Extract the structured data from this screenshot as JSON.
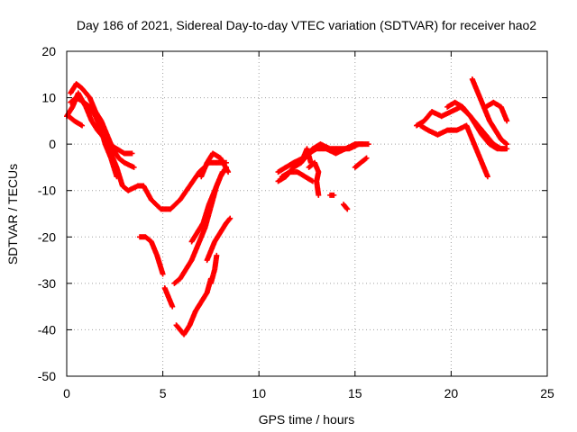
{
  "chart_data": {
    "type": "scatter",
    "title": "Day 186 of 2021, Sidereal Day-to-day VTEC variation (SDTVAR) for receiver hao2",
    "xlabel": "GPS time / hours",
    "ylabel": "SDTVAR / TECUs",
    "xlim": [
      0,
      25
    ],
    "ylim": [
      -50,
      20
    ],
    "xticks": [
      "0",
      "5",
      "10",
      "15",
      "20",
      "25"
    ],
    "yticks": [
      "20",
      "10",
      "0",
      "-10",
      "-20",
      "-30",
      "-40",
      "-50"
    ],
    "grid": true,
    "marker": "+",
    "marker_color": "#ff0000",
    "series": [
      {
        "values": [
          [
            0,
            6
          ],
          [
            0.3,
            8
          ],
          [
            0.6,
            11
          ],
          [
            1.0,
            8
          ],
          [
            1.3,
            5
          ],
          [
            1.6,
            3
          ],
          [
            2.0,
            1
          ],
          [
            2.3,
            -2
          ],
          [
            2.6,
            -5
          ],
          [
            2.9,
            -9
          ],
          [
            3.2,
            -10
          ],
          [
            3.7,
            -9
          ],
          [
            4.0,
            -9
          ],
          [
            4.4,
            -12
          ],
          [
            4.9,
            -14
          ],
          [
            5.4,
            -14
          ],
          [
            5.9,
            -12
          ],
          [
            6.4,
            -9
          ],
          [
            6.9,
            -6
          ],
          [
            7.4,
            -4
          ],
          [
            7.9,
            -4
          ],
          [
            8.3,
            -4
          ]
        ]
      },
      {
        "values": [
          [
            0.2,
            11
          ],
          [
            0.5,
            13
          ],
          [
            0.8,
            12
          ],
          [
            1.2,
            10
          ],
          [
            1.5,
            7
          ],
          [
            1.8,
            5
          ],
          [
            2.1,
            2
          ],
          [
            2.4,
            -1
          ],
          [
            2.7,
            -3
          ],
          [
            3.0,
            -4
          ],
          [
            3.5,
            -5
          ]
        ]
      },
      {
        "values": [
          [
            0.2,
            9
          ],
          [
            0.5,
            10
          ],
          [
            0.9,
            9
          ],
          [
            1.2,
            8
          ],
          [
            1.5,
            6
          ],
          [
            1.8,
            3
          ],
          [
            2.0,
            0
          ],
          [
            2.3,
            -3
          ],
          [
            2.6,
            -7
          ]
        ]
      },
      {
        "values": [
          [
            0.1,
            6
          ],
          [
            0.4,
            5
          ],
          [
            0.8,
            4
          ]
        ]
      },
      {
        "values": [
          [
            2.2,
            0
          ],
          [
            2.6,
            -1
          ],
          [
            3.0,
            -2
          ],
          [
            3.4,
            -2
          ]
        ]
      },
      {
        "values": [
          [
            3.8,
            -20
          ],
          [
            4.1,
            -20
          ],
          [
            4.4,
            -21
          ],
          [
            4.7,
            -24
          ],
          [
            5.0,
            -28
          ]
        ]
      },
      {
        "values": [
          [
            5.1,
            -31
          ],
          [
            5.3,
            -33
          ],
          [
            5.5,
            -35
          ]
        ]
      },
      {
        "values": [
          [
            5.7,
            -39
          ],
          [
            5.9,
            -40
          ],
          [
            6.1,
            -41
          ],
          [
            6.4,
            -39
          ],
          [
            6.7,
            -36
          ],
          [
            7.0,
            -34
          ],
          [
            7.3,
            -32
          ],
          [
            7.5,
            -29
          ]
        ]
      },
      {
        "values": [
          [
            5.6,
            -30
          ],
          [
            5.9,
            -29
          ],
          [
            6.2,
            -27
          ],
          [
            6.5,
            -25
          ],
          [
            6.8,
            -22
          ],
          [
            7.0,
            -20
          ],
          [
            7.2,
            -18
          ],
          [
            7.4,
            -15
          ],
          [
            7.6,
            -12
          ],
          [
            7.8,
            -9
          ],
          [
            8.1,
            -6
          ]
        ]
      },
      {
        "values": [
          [
            6.5,
            -21
          ],
          [
            6.8,
            -19
          ],
          [
            7.1,
            -17
          ],
          [
            7.4,
            -13
          ],
          [
            7.7,
            -10
          ],
          [
            8.0,
            -7
          ],
          [
            8.3,
            -5
          ]
        ]
      },
      {
        "values": [
          [
            7.0,
            -7
          ],
          [
            7.3,
            -4
          ],
          [
            7.6,
            -2
          ],
          [
            8.0,
            -3
          ],
          [
            8.4,
            -6
          ]
        ]
      },
      {
        "values": [
          [
            7.3,
            -25
          ],
          [
            7.5,
            -23
          ],
          [
            7.7,
            -21
          ],
          [
            8.0,
            -19
          ],
          [
            8.3,
            -17
          ],
          [
            8.5,
            -16
          ]
        ]
      },
      {
        "values": [
          [
            7.5,
            -30
          ],
          [
            7.7,
            -27
          ],
          [
            7.8,
            -24
          ]
        ]
      },
      {
        "values": [
          [
            11.0,
            -8
          ],
          [
            11.4,
            -7
          ],
          [
            11.8,
            -5
          ],
          [
            12.2,
            -4
          ],
          [
            12.6,
            -2
          ],
          [
            13.0,
            -1
          ],
          [
            13.5,
            -1
          ],
          [
            14.0,
            -2
          ],
          [
            14.5,
            -1
          ],
          [
            15.0,
            0
          ],
          [
            15.4,
            0
          ]
        ]
      },
      {
        "values": [
          [
            11.0,
            -6
          ],
          [
            11.4,
            -5
          ],
          [
            11.8,
            -4
          ],
          [
            12.3,
            -3
          ],
          [
            12.8,
            -1
          ],
          [
            13.2,
            0
          ],
          [
            13.7,
            -1
          ],
          [
            14.2,
            -1
          ],
          [
            14.7,
            -1
          ],
          [
            15.2,
            0
          ],
          [
            15.7,
            0
          ]
        ]
      },
      {
        "values": [
          [
            11.2,
            -7
          ],
          [
            11.6,
            -6
          ],
          [
            12.0,
            -6
          ],
          [
            12.4,
            -7
          ],
          [
            12.8,
            -8
          ]
        ]
      },
      {
        "values": [
          [
            12.6,
            -5
          ],
          [
            12.9,
            -4
          ],
          [
            13.1,
            -6
          ],
          [
            13.0,
            -8
          ],
          [
            13.1,
            -11
          ]
        ]
      },
      {
        "values": [
          [
            12.3,
            -3
          ],
          [
            12.5,
            -1
          ],
          [
            12.7,
            -4
          ]
        ]
      },
      {
        "values": [
          [
            13.7,
            -11
          ],
          [
            13.9,
            -11
          ]
        ]
      },
      {
        "values": [
          [
            14.4,
            -13
          ],
          [
            14.6,
            -14
          ]
        ]
      },
      {
        "values": [
          [
            15.0,
            -5
          ],
          [
            15.3,
            -4
          ],
          [
            15.6,
            -3
          ]
        ]
      },
      {
        "values": [
          [
            18.2,
            4
          ],
          [
            18.6,
            5
          ],
          [
            19.0,
            7
          ],
          [
            19.5,
            6
          ],
          [
            20.0,
            7
          ],
          [
            20.5,
            8
          ],
          [
            21.0,
            6
          ],
          [
            21.3,
            4
          ],
          [
            21.6,
            2
          ],
          [
            22.0,
            0
          ],
          [
            22.4,
            -1
          ],
          [
            22.8,
            -1
          ]
        ]
      },
      {
        "values": [
          [
            18.4,
            4
          ],
          [
            18.8,
            3
          ],
          [
            19.3,
            2
          ],
          [
            19.8,
            3
          ],
          [
            20.3,
            3
          ],
          [
            20.8,
            4
          ],
          [
            21.1,
            1
          ],
          [
            21.4,
            -2
          ],
          [
            21.7,
            -5
          ],
          [
            21.9,
            -7
          ]
        ]
      },
      {
        "values": [
          [
            19.8,
            8
          ],
          [
            20.2,
            9
          ],
          [
            20.6,
            8
          ],
          [
            21.0,
            6
          ],
          [
            21.4,
            4
          ],
          [
            21.8,
            2
          ],
          [
            22.2,
            0
          ],
          [
            22.6,
            -1
          ],
          [
            22.9,
            -1
          ]
        ]
      },
      {
        "values": [
          [
            21.1,
            14
          ],
          [
            21.4,
            11
          ],
          [
            21.7,
            8
          ],
          [
            22.0,
            5
          ],
          [
            22.3,
            3
          ],
          [
            22.6,
            1
          ],
          [
            22.9,
            0
          ]
        ]
      },
      {
        "values": [
          [
            21.8,
            8
          ],
          [
            22.2,
            9
          ],
          [
            22.6,
            8
          ],
          [
            22.8,
            6
          ],
          [
            22.9,
            5
          ]
        ]
      }
    ]
  }
}
